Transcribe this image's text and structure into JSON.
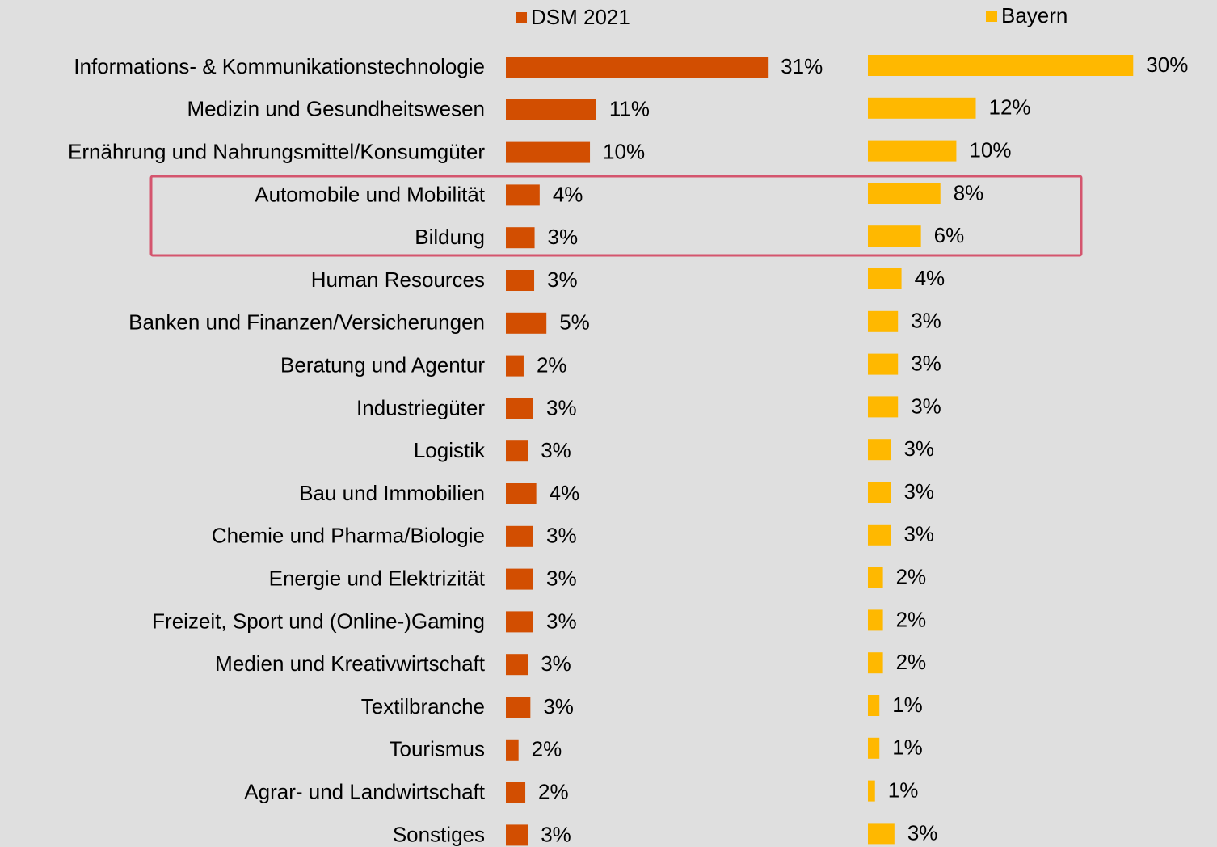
{
  "chart_data": {
    "type": "bar",
    "orientation": "horizontal",
    "categories": [
      "Informations- & Kommunikationstechnologie",
      "Medizin und Gesundheitswesen",
      "Ernährung und Nahrungsmittel/Konsumgüter",
      "Automobile und Mobilität",
      "Bildung",
      "Human Resources",
      "Banken und Finanzen/Versicherungen",
      "Beratung und Agentur",
      "Industriegüter",
      "Logistik",
      "Bau und Immobilien",
      "Chemie und Pharma/Biologie",
      "Energie und Elektrizität",
      "Freizeit, Sport und (Online-)Gaming",
      "Medien und Kreativwirtschaft",
      "Textilbranche",
      "Tourismus",
      "Agrar- und Landwirtschaft",
      "Sonstiges"
    ],
    "xlim": [
      0,
      35
    ],
    "series": [
      {
        "name": "DSM 2021",
        "color": "#d24e01",
        "values": [
          31,
          10.7,
          9.95,
          4.0,
          3.4,
          3.35,
          4.8,
          2.1,
          3.25,
          2.6,
          3.6,
          3.25,
          3.25,
          3.25,
          2.6,
          2.9,
          1.5,
          2.3,
          2.6
        ],
        "value_labels": [
          "31%",
          "11%",
          "10%",
          "4%",
          "3%",
          "3%",
          "5%",
          "2%",
          "3%",
          "3%",
          "4%",
          "3%",
          "3%",
          "3%",
          "3%",
          "3%",
          "2%",
          "2%",
          "3%"
        ]
      },
      {
        "name": "Bayern",
        "color": "#ffb800",
        "values": [
          30,
          12.2,
          10.0,
          8.2,
          6.0,
          3.8,
          3.4,
          3.4,
          3.4,
          2.6,
          2.6,
          2.6,
          1.7,
          1.7,
          1.7,
          1.3,
          1.3,
          0.8,
          3.0
        ],
        "value_labels": [
          "30%",
          "12%",
          "10%",
          "8%",
          "6%",
          "4%",
          "3%",
          "3%",
          "3%",
          "3%",
          "3%",
          "3%",
          "2%",
          "2%",
          "2%",
          "1%",
          "1%",
          "1%",
          "3%"
        ]
      }
    ]
  }
}
